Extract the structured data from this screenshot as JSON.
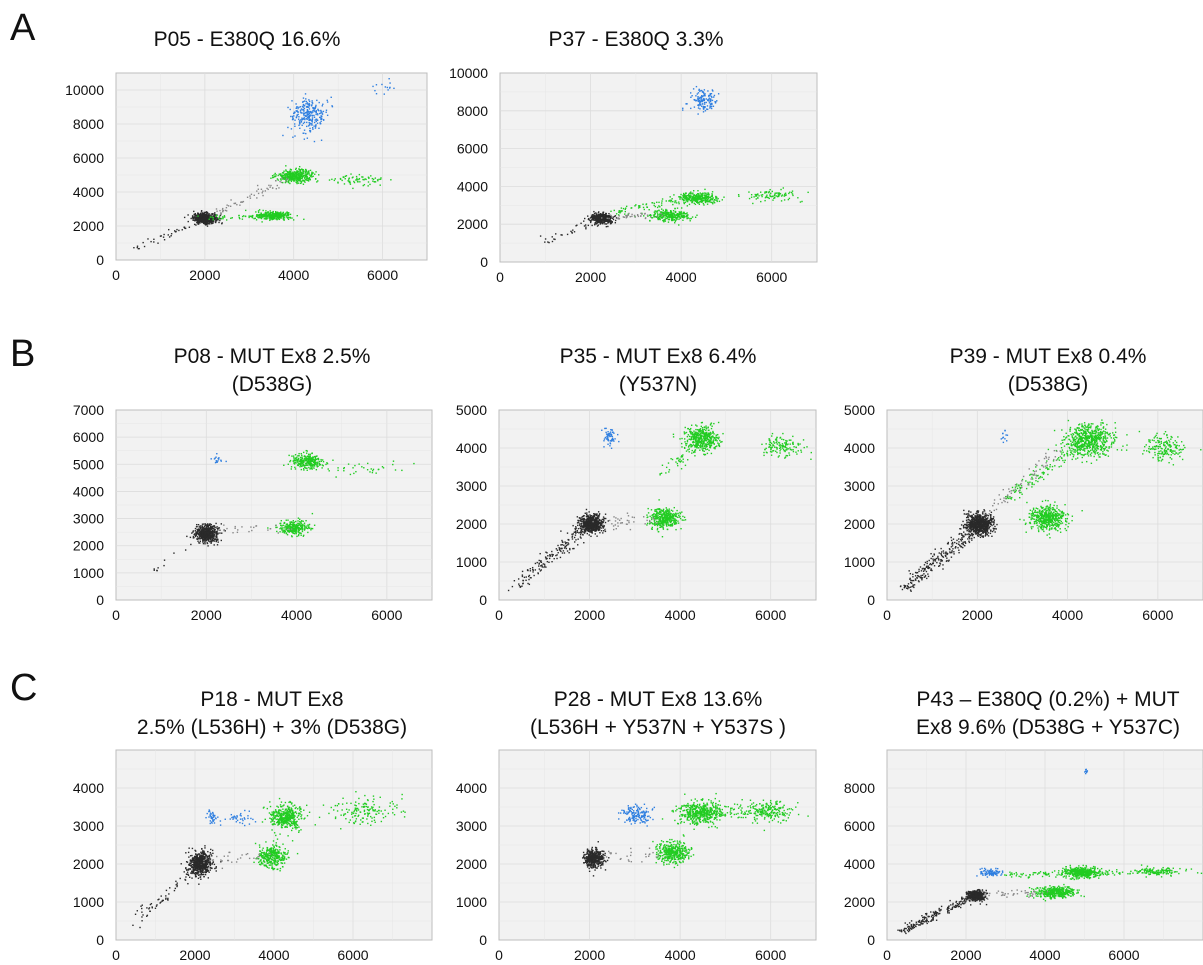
{
  "figure": {
    "panel_letters": [
      "A",
      "B",
      "C"
    ]
  },
  "chart_data": [
    {
      "type": "scatter",
      "panel": "A",
      "title": [
        "P05 - E380Q 16.6%"
      ],
      "xlim": [
        0,
        7000
      ],
      "ylim": [
        0,
        11000
      ],
      "xticks": [
        0,
        2000,
        4000,
        6000
      ],
      "yticks": [
        0,
        2000,
        4000,
        6000,
        8000,
        10000
      ],
      "grid": true,
      "series": [
        {
          "color": "#2a2a2a",
          "clusters": [
            {
              "x": 2000,
              "y": 2450,
              "sx": 130,
              "sy": 150,
              "n": 650
            }
          ],
          "trail": {
            "from": [
              400,
              600
            ],
            "to": [
              2000,
              2400
            ],
            "n": 40
          }
        },
        {
          "color": "#22cc22",
          "clusters": [
            {
              "x": 3550,
              "y": 2600,
              "sx": 200,
              "sy": 120,
              "n": 320
            },
            {
              "x": 4050,
              "y": 4950,
              "sx": 210,
              "sy": 180,
              "n": 380
            },
            {
              "x": 5450,
              "y": 4700,
              "sx": 300,
              "sy": 150,
              "n": 70
            }
          ],
          "trail": {
            "from": [
              2100,
              2500
            ],
            "to": [
              3400,
              2550
            ],
            "n": 40
          }
        },
        {
          "color": "#2f7fe0",
          "clusters": [
            {
              "x": 4350,
              "y": 8550,
              "sx": 200,
              "sy": 520,
              "n": 260
            },
            {
              "x": 6100,
              "y": 10100,
              "sx": 150,
              "sy": 200,
              "n": 14
            }
          ]
        },
        {
          "color": "#888888",
          "clusters": [],
          "trail": {
            "from": [
              2200,
              2700
            ],
            "to": [
              3900,
              4800
            ],
            "n": 60
          }
        }
      ]
    },
    {
      "type": "scatter",
      "panel": "A",
      "title": [
        "P37 - E380Q 3.3%"
      ],
      "xlim": [
        0,
        7000
      ],
      "ylim": [
        0,
        10000
      ],
      "xticks": [
        0,
        2000,
        4000,
        6000
      ],
      "yticks": [
        0,
        2000,
        4000,
        6000,
        8000,
        10000
      ],
      "grid": true,
      "series": [
        {
          "color": "#2a2a2a",
          "clusters": [
            {
              "x": 2250,
              "y": 2300,
              "sx": 120,
              "sy": 130,
              "n": 450
            }
          ],
          "trail": {
            "from": [
              900,
              1000
            ],
            "to": [
              2200,
              2300
            ],
            "n": 30
          }
        },
        {
          "color": "#22cc22",
          "clusters": [
            {
              "x": 3750,
              "y": 2450,
              "sx": 210,
              "sy": 150,
              "n": 280
            },
            {
              "x": 4350,
              "y": 3400,
              "sx": 220,
              "sy": 160,
              "n": 330
            },
            {
              "x": 6000,
              "y": 3500,
              "sx": 300,
              "sy": 150,
              "n": 90
            }
          ],
          "trail": {
            "from": [
              2400,
              2600
            ],
            "to": [
              3900,
              3300
            ],
            "n": 60
          }
        },
        {
          "color": "#2f7fe0",
          "clusters": [
            {
              "x": 4500,
              "y": 8500,
              "sx": 150,
              "sy": 300,
              "n": 140
            }
          ]
        },
        {
          "color": "#888888",
          "clusters": [],
          "trail": {
            "from": [
              2400,
              2300
            ],
            "to": [
              3500,
              2500
            ],
            "n": 40
          }
        }
      ]
    },
    {
      "type": "scatter",
      "panel": "B",
      "title": [
        "P08 - MUT Ex8 2.5%",
        "(D538G)"
      ],
      "xlim": [
        0,
        7000
      ],
      "ylim": [
        0,
        7000
      ],
      "xticks": [
        0,
        2000,
        4000,
        6000
      ],
      "yticks": [
        0,
        1000,
        2000,
        3000,
        4000,
        5000,
        6000,
        7000
      ],
      "grid": true,
      "series": [
        {
          "color": "#2a2a2a",
          "clusters": [
            {
              "x": 2000,
              "y": 2450,
              "sx": 130,
              "sy": 160,
              "n": 550
            }
          ],
          "trail": {
            "from": [
              400,
              500
            ],
            "to": [
              1950,
              2400
            ],
            "n": 10
          }
        },
        {
          "color": "#22cc22",
          "clusters": [
            {
              "x": 3950,
              "y": 2650,
              "sx": 170,
              "sy": 130,
              "n": 250
            },
            {
              "x": 4250,
              "y": 5100,
              "sx": 170,
              "sy": 140,
              "n": 270
            },
            {
              "x": 5500,
              "y": 4800,
              "sx": 500,
              "sy": 150,
              "n": 35
            }
          ]
        },
        {
          "color": "#2f7fe0",
          "clusters": [
            {
              "x": 2250,
              "y": 5200,
              "sx": 60,
              "sy": 90,
              "n": 16
            }
          ]
        },
        {
          "color": "#888888",
          "clusters": [],
          "trail": {
            "from": [
              2200,
              2600
            ],
            "to": [
              3800,
              2650
            ],
            "n": 25
          }
        }
      ]
    },
    {
      "type": "scatter",
      "panel": "B",
      "title": [
        "P35 - MUT Ex8 6.4%",
        "(Y537N)"
      ],
      "xlim": [
        0,
        7000
      ],
      "ylim": [
        0,
        5000
      ],
      "xticks": [
        0,
        2000,
        4000,
        6000
      ],
      "yticks": [
        0,
        1000,
        2000,
        3000,
        4000,
        5000
      ],
      "grid": true,
      "series": [
        {
          "color": "#2a2a2a",
          "clusters": [
            {
              "x": 2050,
              "y": 2000,
              "sx": 130,
              "sy": 120,
              "n": 550
            }
          ],
          "trail": {
            "from": [
              400,
              400
            ],
            "to": [
              2000,
              1950
            ],
            "n": 180
          }
        },
        {
          "color": "#22cc22",
          "clusters": [
            {
              "x": 3650,
              "y": 2150,
              "sx": 170,
              "sy": 130,
              "n": 380
            },
            {
              "x": 4500,
              "y": 4250,
              "sx": 180,
              "sy": 160,
              "n": 420
            },
            {
              "x": 6250,
              "y": 4050,
              "sx": 220,
              "sy": 150,
              "n": 130
            }
          ],
          "trail": {
            "from": [
              3600,
              3300
            ],
            "to": [
              4400,
              4200
            ],
            "n": 60
          }
        },
        {
          "color": "#2f7fe0",
          "clusters": [
            {
              "x": 2450,
              "y": 4300,
              "sx": 70,
              "sy": 120,
              "n": 60
            }
          ]
        },
        {
          "color": "#888888",
          "clusters": [],
          "trail": {
            "from": [
              2200,
              2000
            ],
            "to": [
              3500,
              2150
            ],
            "n": 40
          }
        }
      ]
    },
    {
      "type": "scatter",
      "panel": "B",
      "title": [
        "P39 - MUT Ex8 0.4%",
        "(D538G)"
      ],
      "xlim": [
        0,
        7000
      ],
      "ylim": [
        0,
        5000
      ],
      "xticks": [
        0,
        2000,
        4000,
        6000
      ],
      "yticks": [
        0,
        1000,
        2000,
        3000,
        4000,
        5000
      ],
      "grid": true,
      "series": [
        {
          "color": "#2a2a2a",
          "clusters": [
            {
              "x": 2050,
              "y": 2000,
              "sx": 140,
              "sy": 140,
              "n": 700
            }
          ],
          "trail": {
            "from": [
              400,
              300
            ],
            "to": [
              2000,
              1950
            ],
            "n": 260
          }
        },
        {
          "color": "#22cc22",
          "clusters": [
            {
              "x": 3550,
              "y": 2150,
              "sx": 200,
              "sy": 150,
              "n": 480
            },
            {
              "x": 4500,
              "y": 4200,
              "sx": 260,
              "sy": 200,
              "n": 600
            },
            {
              "x": 6150,
              "y": 4000,
              "sx": 220,
              "sy": 160,
              "n": 170
            }
          ],
          "trail": {
            "from": [
              2600,
              2600
            ],
            "to": [
              4300,
              4100
            ],
            "n": 120
          }
        },
        {
          "color": "#2f7fe0",
          "clusters": [
            {
              "x": 2600,
              "y": 4350,
              "sx": 60,
              "sy": 120,
              "n": 12
            }
          ]
        },
        {
          "color": "#888888",
          "clusters": [],
          "trail": {
            "from": [
              2200,
              2300
            ],
            "to": [
              3800,
              3900
            ],
            "n": 70
          }
        }
      ]
    },
    {
      "type": "scatter",
      "panel": "C",
      "title": [
        "P18 - MUT Ex8",
        "2.5% (L536H) + 3% (D538G)"
      ],
      "xlim": [
        0,
        8000
      ],
      "ylim": [
        0,
        5000
      ],
      "xticks": [
        0,
        2000,
        4000,
        6000
      ],
      "yticks": [
        0,
        1000,
        2000,
        3000,
        4000
      ],
      "grid": true,
      "series": [
        {
          "color": "#2a2a2a",
          "clusters": [
            {
              "x": 2150,
              "y": 2000,
              "sx": 140,
              "sy": 150,
              "n": 600
            }
          ],
          "trail": {
            "from": [
              500,
              500
            ],
            "to": [
              2100,
              1950
            ],
            "n": 70
          }
        },
        {
          "color": "#22cc22",
          "clusters": [
            {
              "x": 3950,
              "y": 2200,
              "sx": 190,
              "sy": 150,
              "n": 320
            },
            {
              "x": 4300,
              "y": 3250,
              "sx": 200,
              "sy": 160,
              "n": 400
            },
            {
              "x": 6300,
              "y": 3400,
              "sx": 450,
              "sy": 180,
              "n": 150
            }
          ]
        },
        {
          "color": "#2f7fe0",
          "clusters": [
            {
              "x": 2450,
              "y": 3250,
              "sx": 80,
              "sy": 100,
              "n": 40
            },
            {
              "x": 3100,
              "y": 3200,
              "sx": 150,
              "sy": 90,
              "n": 35
            }
          ]
        },
        {
          "color": "#888888",
          "clusters": [],
          "trail": {
            "from": [
              2300,
              2100
            ],
            "to": [
              3800,
              2200
            ],
            "n": 30
          }
        }
      ]
    },
    {
      "type": "scatter",
      "panel": "C",
      "title": [
        "P28 - MUT Ex8 13.6%",
        "(L536H + Y537N + Y537S )"
      ],
      "xlim": [
        0,
        7000
      ],
      "ylim": [
        0,
        5000
      ],
      "xticks": [
        0,
        2000,
        4000,
        6000
      ],
      "yticks": [
        0,
        1000,
        2000,
        3000,
        4000
      ],
      "grid": true,
      "series": [
        {
          "color": "#2a2a2a",
          "clusters": [
            {
              "x": 2100,
              "y": 2150,
              "sx": 100,
              "sy": 110,
              "n": 420
            }
          ]
        },
        {
          "color": "#22cc22",
          "clusters": [
            {
              "x": 3850,
              "y": 2300,
              "sx": 180,
              "sy": 140,
              "n": 380
            },
            {
              "x": 4450,
              "y": 3350,
              "sx": 230,
              "sy": 150,
              "n": 450
            },
            {
              "x": 6000,
              "y": 3400,
              "sx": 250,
              "sy": 140,
              "n": 180
            }
          ],
          "trail": {
            "from": [
              4600,
              3350
            ],
            "to": [
              5800,
              3400
            ],
            "n": 80
          }
        },
        {
          "color": "#2f7fe0",
          "clusters": [
            {
              "x": 3050,
              "y": 3300,
              "sx": 160,
              "sy": 110,
              "n": 150
            }
          ]
        },
        {
          "color": "#888888",
          "clusters": [],
          "trail": {
            "from": [
              2300,
              2200
            ],
            "to": [
              3600,
              2300
            ],
            "n": 25
          }
        }
      ]
    },
    {
      "type": "scatter",
      "panel": "C",
      "title": [
        "P43 – E380Q (0.2%) + MUT",
        "Ex8 9.6% (D538G + Y537C)"
      ],
      "xlim": [
        0,
        8000
      ],
      "ylim": [
        0,
        10000
      ],
      "xticks": [
        0,
        2000,
        4000,
        6000
      ],
      "yticks": [
        0,
        2000,
        4000,
        6000,
        8000
      ],
      "grid": true,
      "series": [
        {
          "color": "#2a2a2a",
          "clusters": [
            {
              "x": 2250,
              "y": 2350,
              "sx": 110,
              "sy": 140,
              "n": 420
            }
          ],
          "trail": {
            "from": [
              400,
              500
            ],
            "to": [
              2200,
              2300
            ],
            "n": 200
          }
        },
        {
          "color": "#22cc22",
          "clusters": [
            {
              "x": 4250,
              "y": 2500,
              "sx": 250,
              "sy": 150,
              "n": 380
            },
            {
              "x": 4900,
              "y": 3550,
              "sx": 220,
              "sy": 150,
              "n": 380
            },
            {
              "x": 6900,
              "y": 3600,
              "sx": 350,
              "sy": 120,
              "n": 130
            }
          ],
          "trail": {
            "from": [
              3000,
              3400
            ],
            "to": [
              6500,
              3600
            ],
            "n": 120
          }
        },
        {
          "color": "#2f7fe0",
          "clusters": [
            {
              "x": 2600,
              "y": 3550,
              "sx": 140,
              "sy": 90,
              "n": 90
            },
            {
              "x": 5050,
              "y": 8900,
              "sx": 50,
              "sy": 120,
              "n": 8
            }
          ]
        },
        {
          "color": "#888888",
          "clusters": [],
          "trail": {
            "from": [
              2400,
              2400
            ],
            "to": [
              4000,
              2500
            ],
            "n": 40
          }
        }
      ]
    }
  ]
}
